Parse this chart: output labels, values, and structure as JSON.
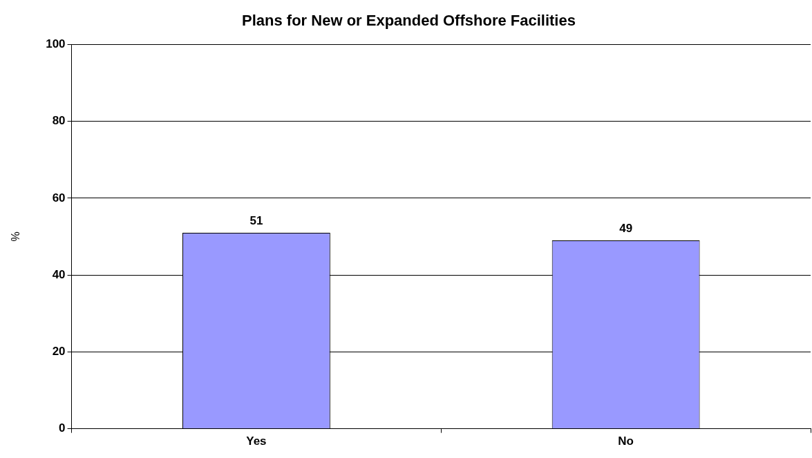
{
  "chart_data": {
    "type": "bar",
    "title": "Plans for New or Expanded Offshore Facilities",
    "ylabel": "%",
    "categories": [
      "Yes",
      "No"
    ],
    "values": [
      51,
      49
    ],
    "color": "#9999ff",
    "ylim": [
      0,
      100
    ],
    "yticks": [
      0,
      20,
      40,
      60,
      80,
      100
    ],
    "grid": "y",
    "data_labels": true
  }
}
